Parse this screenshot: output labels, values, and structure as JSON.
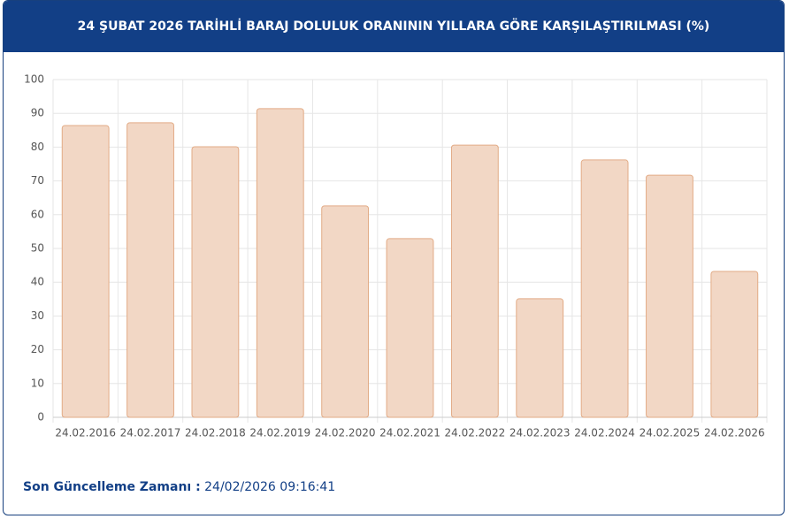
{
  "chart_data": {
    "type": "bar",
    "title": "24 ŞUBAT 2026 TARİHLİ BARAJ DOLULUK ORANININ YILLARA GÖRE KARŞILAŞTIRILMASI (%)",
    "categories": [
      "24.02.2016",
      "24.02.2017",
      "24.02.2018",
      "24.02.2019",
      "24.02.2020",
      "24.02.2021",
      "24.02.2022",
      "24.02.2023",
      "24.02.2024",
      "24.02.2025",
      "24.02.2026"
    ],
    "values": [
      86.4,
      87.2,
      80.1,
      91.4,
      62.6,
      52.9,
      80.6,
      35.1,
      76.2,
      71.7,
      43.2
    ],
    "color": "#f2d7c5",
    "edge_color": "#e2ab86",
    "ylim": [
      0,
      100
    ],
    "yticks": [
      0,
      10,
      20,
      30,
      40,
      50,
      60,
      70,
      80,
      90,
      100
    ],
    "grid": true
  },
  "footer": {
    "label": "Son Güncelleme Zamanı :",
    "value": "24/02/2026 09:16:41"
  }
}
